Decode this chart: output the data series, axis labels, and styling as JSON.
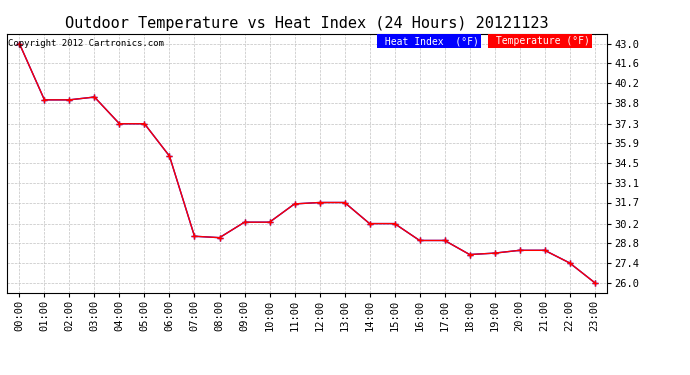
{
  "title": "Outdoor Temperature vs Heat Index (24 Hours) 20121123",
  "copyright_text": "Copyright 2012 Cartronics.com",
  "x_labels": [
    "00:00",
    "01:00",
    "02:00",
    "03:00",
    "04:00",
    "05:00",
    "06:00",
    "07:00",
    "08:00",
    "09:00",
    "10:00",
    "11:00",
    "12:00",
    "13:00",
    "14:00",
    "15:00",
    "16:00",
    "17:00",
    "18:00",
    "19:00",
    "20:00",
    "21:00",
    "22:00",
    "23:00"
  ],
  "temperature": [
    43.0,
    39.0,
    39.0,
    39.2,
    37.3,
    37.3,
    35.0,
    29.3,
    29.2,
    30.3,
    30.3,
    31.6,
    31.7,
    31.7,
    30.2,
    30.2,
    29.0,
    29.0,
    28.0,
    28.1,
    28.3,
    28.3,
    27.4,
    26.0
  ],
  "heat_index": [
    43.0,
    39.0,
    39.0,
    39.2,
    37.3,
    37.3,
    35.0,
    29.3,
    29.2,
    30.3,
    30.3,
    31.6,
    31.7,
    31.7,
    30.2,
    30.2,
    29.0,
    29.0,
    28.0,
    28.1,
    28.3,
    28.3,
    27.4,
    26.0
  ],
  "temp_color": "#ff0000",
  "heat_index_color": "#0000ff",
  "y_ticks": [
    26.0,
    27.4,
    28.8,
    30.2,
    31.7,
    33.1,
    34.5,
    35.9,
    37.3,
    38.8,
    40.2,
    41.6,
    43.0
  ],
  "y_min": 25.3,
  "y_max": 43.7,
  "background_color": "#ffffff",
  "grid_color": "#bbbbbb",
  "legend_heat_index_bg": "#0000ff",
  "legend_temp_bg": "#ff0000",
  "legend_text_color": "#ffffff",
  "title_fontsize": 11,
  "tick_fontsize": 7.5,
  "copyright_fontsize": 6.5,
  "legend_fontsize": 7.0
}
